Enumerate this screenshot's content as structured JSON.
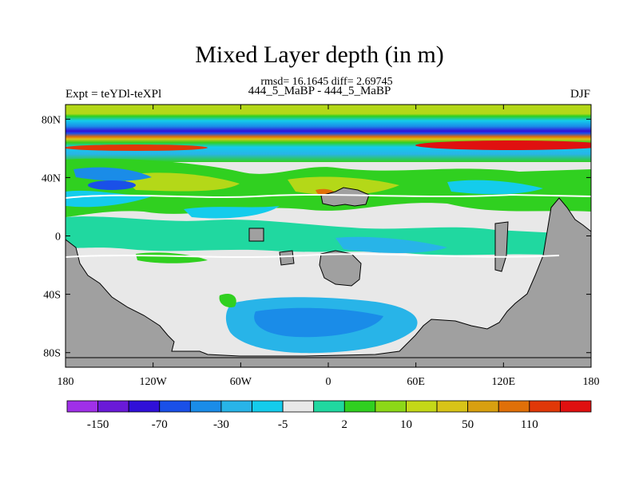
{
  "header": {
    "title": "Mixed Layer depth (in m)",
    "subtitle": "rmsd= 16.1645 diff= 2.69745",
    "center_string": "444_5_MaBP - 444_5_MaBP",
    "left_string": "Expt = teYDl-teXPl",
    "right_string": "DJF"
  },
  "map": {
    "projection": "cylindrical equidistant",
    "lon_ticks": [
      "180",
      "120W",
      "60W",
      "0",
      "60E",
      "120E",
      "180"
    ],
    "lat_ticks": [
      "80N",
      "40N",
      "0",
      "40S",
      "80S"
    ],
    "land_color": "#a0a0a0"
  },
  "colorbar": {
    "colors": [
      "#a030e8",
      "#6a1ad8",
      "#3010d8",
      "#1a50e8",
      "#1a8ce8",
      "#28b4e8",
      "#14ccec",
      "#e8e8e8",
      "#20d8a0",
      "#30d020",
      "#8cd818",
      "#c4d818",
      "#d8c418",
      "#d8a010",
      "#e07008",
      "#e03808",
      "#e01010"
    ],
    "labels": [
      "-150",
      "-70",
      "-30",
      "-5",
      "2",
      "10",
      "50",
      "110"
    ]
  }
}
